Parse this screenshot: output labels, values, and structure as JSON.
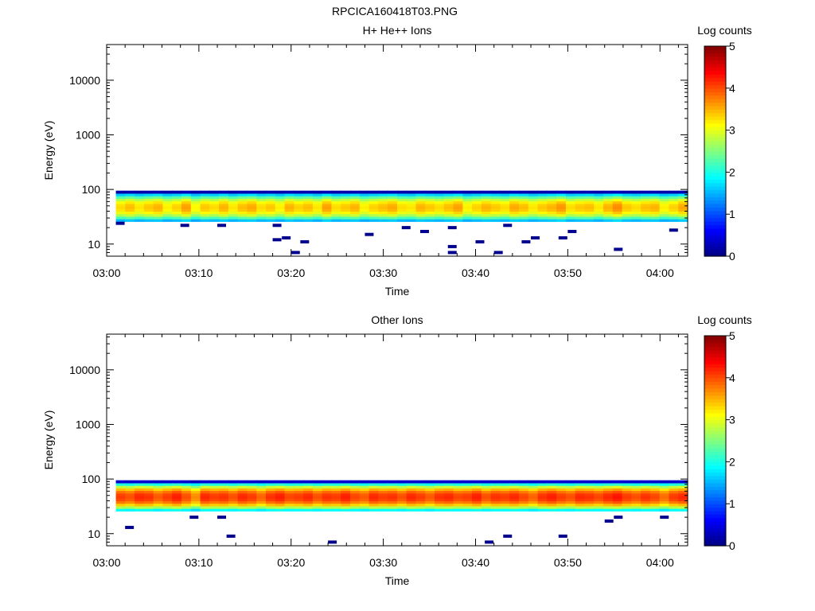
{
  "figure_title": "RPCICA160418T03.PNG",
  "chart_data": [
    {
      "type": "heatmap",
      "title": "H+ He++ Ions",
      "xlabel": "Time",
      "ylabel": "Energy (eV)",
      "x_tick_labels": [
        "03:00",
        "03:10",
        "03:20",
        "03:30",
        "03:40",
        "03:50",
        "04:00"
      ],
      "xlim": [
        "03:00",
        "04:03"
      ],
      "yscale": "log",
      "ylim": [
        6,
        45000
      ],
      "y_tick_labels": [
        "10",
        "100",
        "1000",
        "10000"
      ],
      "colorbar": {
        "label": "Log counts",
        "min": 0,
        "max": 5,
        "tick_labels": [
          "0",
          "1",
          "2",
          "3",
          "4",
          "5"
        ],
        "colormap": "jet"
      },
      "energy_band_ev": [
        26,
        95
      ],
      "peak_log_counts": 3.3,
      "peak_time_variation": [
        0.0,
        0.15,
        -0.05,
        0.1,
        0.2,
        -0.1,
        0.05,
        0.3,
        -0.15,
        0.1,
        0.0,
        0.2,
        -0.05,
        0.15,
        0.25,
        0.0,
        0.1,
        -0.1,
        0.2,
        0.05,
        0.15,
        -0.05,
        0.3,
        0.0,
        0.1,
        0.2,
        -0.1,
        0.05,
        0.15,
        0.25,
        0.0,
        -0.05,
        0.2,
        0.1,
        0.0,
        0.15,
        0.3,
        -0.1,
        0.05,
        0.2,
        0.1,
        0.0,
        0.25,
        0.15,
        -0.05,
        0.1,
        0.2,
        0.35,
        0.0,
        0.1,
        0.15,
        -0.05,
        0.2,
        0.4,
        0.1,
        0.0,
        0.15,
        0.2,
        -0.1,
        0.05,
        0.25
      ],
      "sporadic_counts": [
        {
          "t": "03:01",
          "e": 24
        },
        {
          "t": "03:08",
          "e": 22
        },
        {
          "t": "03:12",
          "e": 22
        },
        {
          "t": "03:18",
          "e": 12
        },
        {
          "t": "03:18",
          "e": 22
        },
        {
          "t": "03:19",
          "e": 13
        },
        {
          "t": "03:20",
          "e": 7
        },
        {
          "t": "03:21",
          "e": 11
        },
        {
          "t": "03:28",
          "e": 15
        },
        {
          "t": "03:32",
          "e": 20
        },
        {
          "t": "03:34",
          "e": 17
        },
        {
          "t": "03:37",
          "e": 20
        },
        {
          "t": "03:37",
          "e": 9
        },
        {
          "t": "03:37",
          "e": 7
        },
        {
          "t": "03:40",
          "e": 11
        },
        {
          "t": "03:42",
          "e": 7
        },
        {
          "t": "03:43",
          "e": 22
        },
        {
          "t": "03:45",
          "e": 11
        },
        {
          "t": "03:46",
          "e": 13
        },
        {
          "t": "03:49",
          "e": 13
        },
        {
          "t": "03:50",
          "e": 17
        },
        {
          "t": "03:55",
          "e": 8
        },
        {
          "t": "04:01",
          "e": 18
        }
      ]
    },
    {
      "type": "heatmap",
      "title": "Other Ions",
      "xlabel": "Time",
      "ylabel": "Energy (eV)",
      "x_tick_labels": [
        "03:00",
        "03:10",
        "03:20",
        "03:30",
        "03:40",
        "03:50",
        "04:00"
      ],
      "xlim": [
        "03:00",
        "04:03"
      ],
      "yscale": "log",
      "ylim": [
        6,
        45000
      ],
      "y_tick_labels": [
        "10",
        "100",
        "1000",
        "10000"
      ],
      "colorbar": {
        "label": "Log counts",
        "min": 0,
        "max": 5,
        "tick_labels": [
          "0",
          "1",
          "2",
          "3",
          "4",
          "5"
        ],
        "colormap": "jet"
      },
      "energy_band_ev": [
        26,
        95
      ],
      "peak_log_counts": 4.0,
      "peak_time_variation": [
        0.1,
        0.0,
        0.2,
        0.15,
        -0.05,
        0.1,
        0.25,
        0.0,
        -0.3,
        0.2,
        0.1,
        0.15,
        0.0,
        0.2,
        0.1,
        -0.1,
        0.15,
        0.25,
        0.05,
        0.1,
        0.2,
        0.0,
        0.15,
        0.1,
        0.25,
        0.05,
        -0.05,
        0.2,
        0.1,
        0.15,
        0.0,
        0.2,
        0.1,
        -0.05,
        0.15,
        0.2,
        0.05,
        0.1,
        0.25,
        0.0,
        0.15,
        0.1,
        0.2,
        0.05,
        -0.1,
        0.15,
        0.25,
        0.1,
        0.0,
        0.2,
        0.15,
        0.05,
        0.2,
        0.3,
        0.1,
        0.0,
        0.15,
        0.05,
        -0.15,
        0.1,
        0.2
      ],
      "sporadic_counts": [
        {
          "t": "03:02",
          "e": 13
        },
        {
          "t": "03:09",
          "e": 20
        },
        {
          "t": "03:12",
          "e": 20
        },
        {
          "t": "03:13",
          "e": 9
        },
        {
          "t": "03:24",
          "e": 7
        },
        {
          "t": "03:41",
          "e": 7
        },
        {
          "t": "03:43",
          "e": 9
        },
        {
          "t": "03:49",
          "e": 9
        },
        {
          "t": "03:54",
          "e": 17
        },
        {
          "t": "03:55",
          "e": 20
        },
        {
          "t": "04:00",
          "e": 20
        }
      ]
    }
  ]
}
